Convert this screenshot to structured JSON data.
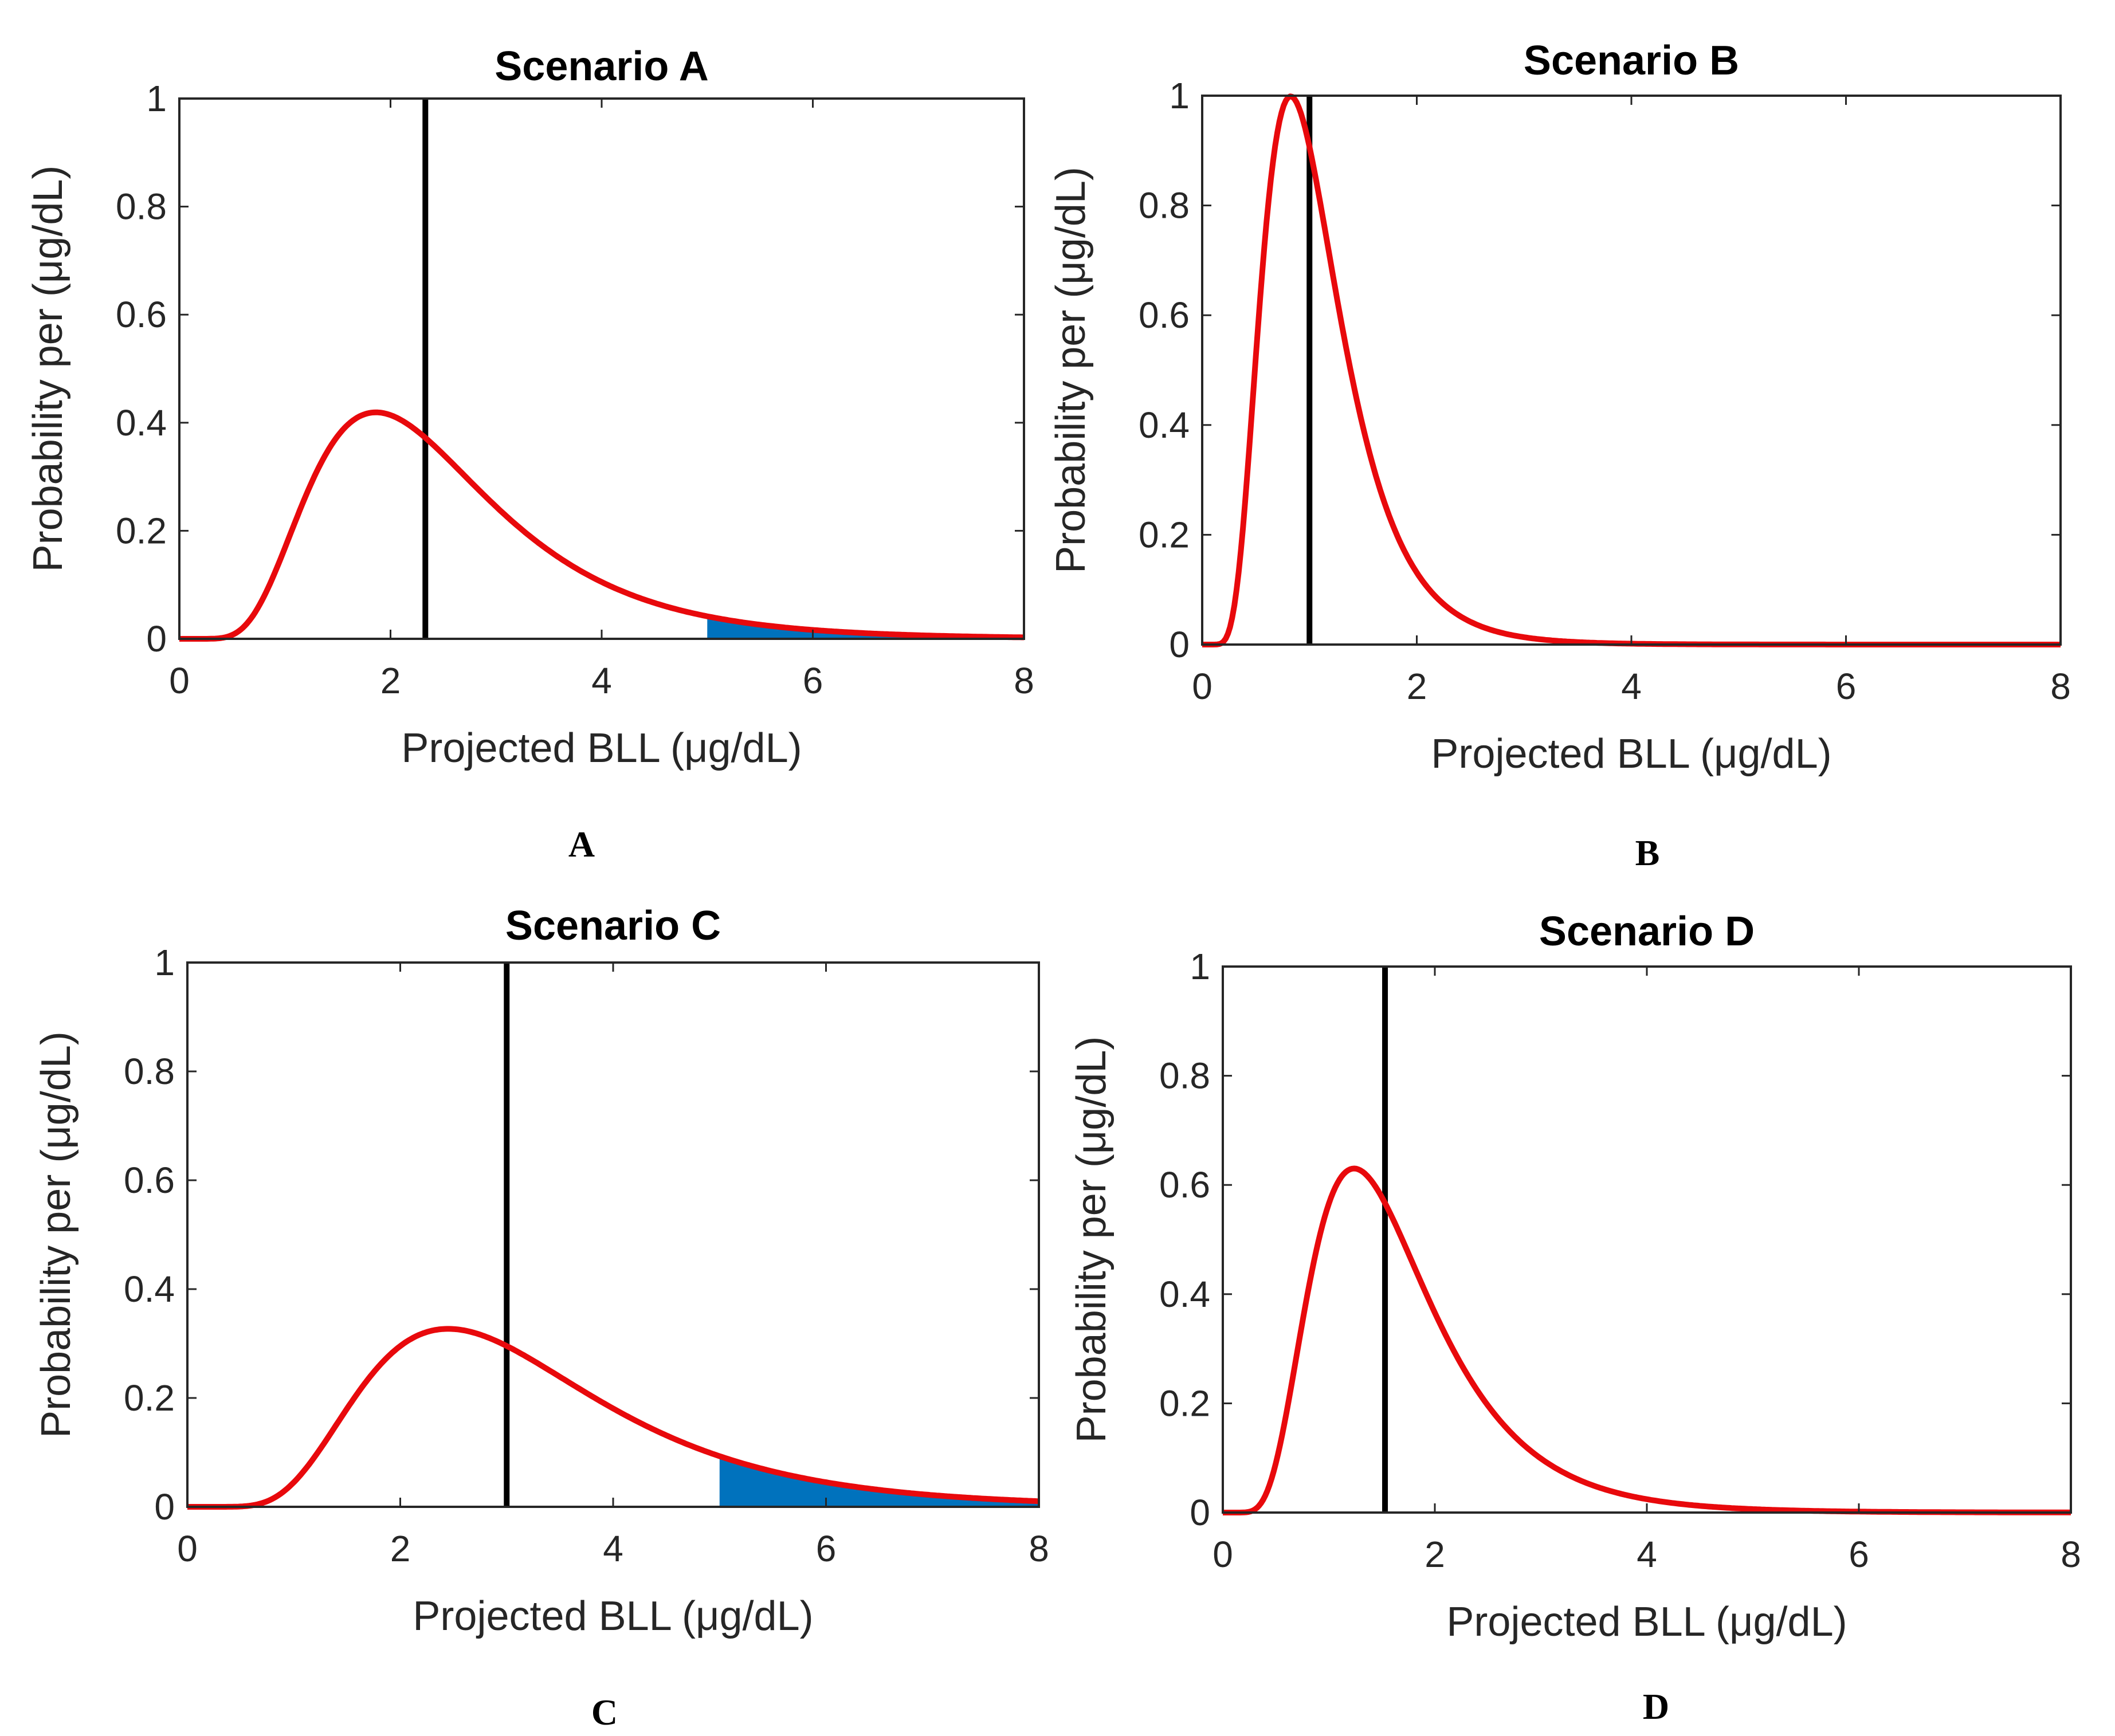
{
  "figure": {
    "panel_letters": [
      "A",
      "B",
      "C",
      "D"
    ]
  },
  "colors": {
    "curve": "#e8090c",
    "threshold_line": "#000000",
    "shade": "#0072bd"
  },
  "chart_data": [
    {
      "type": "line",
      "title": "Scenario A",
      "xlabel": "Projected BLL (μg/dL)",
      "ylabel": "Probability per (μg/dL)",
      "xlim": [
        0,
        8
      ],
      "ylim": [
        0,
        1
      ],
      "xticks": [
        0,
        2,
        4,
        6,
        8
      ],
      "yticks": [
        0,
        0.2,
        0.4,
        0.6,
        0.8,
        1
      ],
      "xtick_labels": [
        "0",
        "2",
        "4",
        "6",
        "8"
      ],
      "ytick_labels": [
        "0",
        "0.2",
        "0.4",
        "0.6",
        "0.8",
        "1"
      ],
      "curve": {
        "name": "lognormal density",
        "median": 2.3,
        "sigma": 0.46
      },
      "vertical_line_x": 2.33,
      "shaded_from_x": 5
    },
    {
      "type": "line",
      "title": "Scenario B",
      "xlabel": "Projected BLL (μg/dL)",
      "ylabel": "Probability per (μg/dL)",
      "xlim": [
        0,
        8
      ],
      "ylim": [
        0,
        1
      ],
      "xticks": [
        0,
        2,
        4,
        6,
        8
      ],
      "yticks": [
        0,
        0.2,
        0.4,
        0.6,
        0.8,
        1
      ],
      "xtick_labels": [
        "0",
        "2",
        "4",
        "6",
        "8"
      ],
      "ytick_labels": [
        "0",
        "0.2",
        "0.4",
        "0.6",
        "0.8",
        "1"
      ],
      "curve": {
        "name": "lognormal density",
        "median": 1.0,
        "sigma": 0.44
      },
      "vertical_line_x": 1.0,
      "shaded_from_x": null
    },
    {
      "type": "line",
      "title": "Scenario C",
      "xlabel": "Projected BLL (μg/dL)",
      "ylabel": "Probability per (μg/dL)",
      "xlim": [
        0,
        8
      ],
      "ylim": [
        0,
        1
      ],
      "xticks": [
        0,
        2,
        4,
        6,
        8
      ],
      "yticks": [
        0,
        0.2,
        0.4,
        0.6,
        0.8,
        1
      ],
      "xtick_labels": [
        "0",
        "2",
        "4",
        "6",
        "8"
      ],
      "ytick_labels": [
        "0",
        "0.2",
        "0.4",
        "0.6",
        "0.8",
        "1"
      ],
      "curve": {
        "name": "lognormal density",
        "median": 3.0,
        "sigma": 0.45
      },
      "vertical_line_x": 3.0,
      "shaded_from_x": 5
    },
    {
      "type": "line",
      "title": "Scenario D",
      "xlabel": "Projected BLL (μg/dL)",
      "ylabel": "Probability per (μg/dL)",
      "xlim": [
        0,
        8
      ],
      "ylim": [
        0,
        1
      ],
      "xticks": [
        0,
        2,
        4,
        6,
        8
      ],
      "yticks": [
        0,
        0.2,
        0.4,
        0.6,
        0.8,
        1
      ],
      "xtick_labels": [
        "0",
        "2",
        "4",
        "6",
        "8"
      ],
      "ytick_labels": [
        "0",
        "0.2",
        "0.4",
        "0.6",
        "0.8",
        "1"
      ],
      "curve": {
        "name": "lognormal density",
        "median": 1.53,
        "sigma": 0.46
      },
      "vertical_line_x": 1.53,
      "shaded_from_x": null
    }
  ]
}
